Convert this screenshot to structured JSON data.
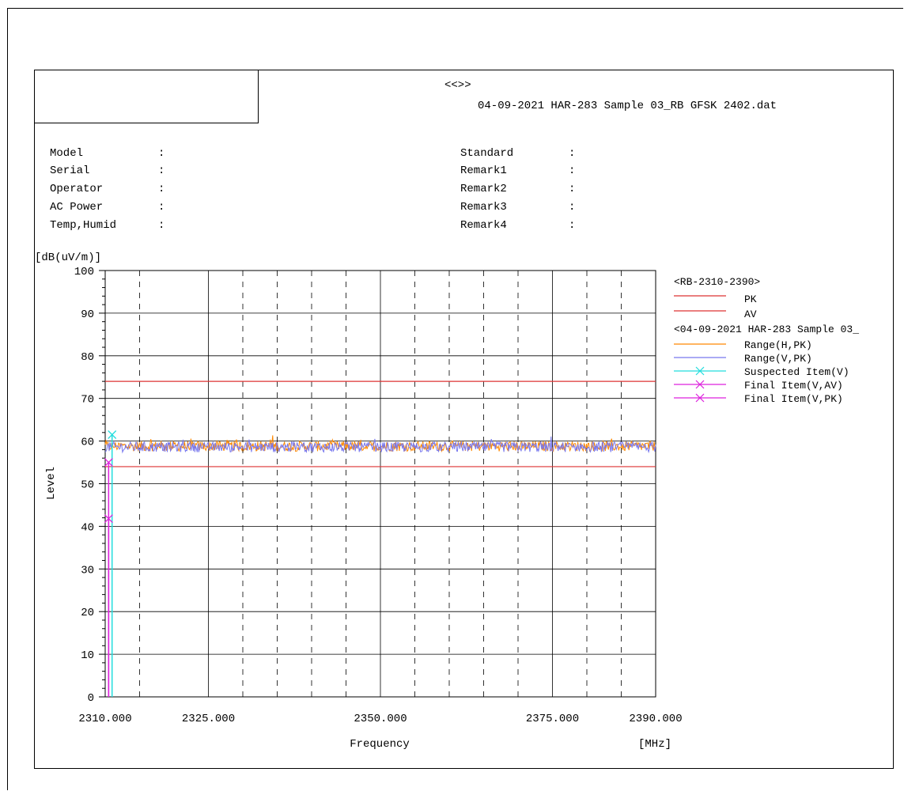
{
  "header": {
    "marker": "<<>>",
    "filename": "04-09-2021 HAR-283 Sample 03_RB GFSK 2402.dat"
  },
  "info_left": [
    {
      "label": "Model",
      "sep": ":",
      "value": ""
    },
    {
      "label": "Serial",
      "sep": ":",
      "value": ""
    },
    {
      "label": "Operator",
      "sep": ":",
      "value": ""
    },
    {
      "label": "AC Power",
      "sep": ":",
      "value": ""
    },
    {
      "label": "Temp,Humid",
      "sep": ":",
      "value": ""
    }
  ],
  "info_right": [
    {
      "label": "Standard",
      "sep": ":",
      "value": ""
    },
    {
      "label": "Remark1",
      "sep": ":",
      "value": ""
    },
    {
      "label": "Remark2",
      "sep": ":",
      "value": ""
    },
    {
      "label": "Remark3",
      "sep": ":",
      "value": ""
    },
    {
      "label": "Remark4",
      "sep": ":",
      "value": ""
    }
  ],
  "chart_data": {
    "type": "line",
    "title": "",
    "xlabel": "Frequency",
    "xunit": "[MHz]",
    "ylabel": "Level",
    "yunit": "[dB(uV/m)]",
    "xlim": [
      2310,
      2390
    ],
    "ylim": [
      0,
      100
    ],
    "xticks": [
      "2310.000",
      "2325.000",
      "2350.000",
      "2375.000",
      "2390.000"
    ],
    "xtick_values": [
      2310,
      2325,
      2350,
      2375,
      2390
    ],
    "yticks": [
      0,
      10,
      20,
      30,
      40,
      50,
      60,
      70,
      80,
      90,
      100
    ],
    "minor_x_values": [
      2315,
      2330,
      2335,
      2340,
      2345,
      2355,
      2360,
      2365,
      2370,
      2380,
      2385
    ],
    "grid": true,
    "colors": {
      "limit": "#dd3333",
      "range_h": "#ff8800",
      "range_v": "#7777ee",
      "suspected": "#22dddd",
      "final": "#dd22dd"
    },
    "legend": {
      "group1_title": "<RB-2310-2390>",
      "group1_items": [
        "PK",
        "AV"
      ],
      "group2_title": "<04-09-2021 HAR-283 Sample 03_",
      "group2_items": [
        "Range(H,PK)",
        "Range(V,PK)",
        "Suspected Item(V)",
        "Final Item(V,AV)",
        "Final Item(V,PK)"
      ]
    },
    "limits": [
      {
        "name": "PK",
        "value": 74
      },
      {
        "name": "AV",
        "value": 54
      }
    ],
    "series": [
      {
        "name": "Range(H,PK)",
        "baseline": 58.8,
        "spread": 1.2
      },
      {
        "name": "Range(V,PK)",
        "baseline": 58.6,
        "spread": 1.2
      }
    ],
    "markers": [
      {
        "name": "Suspected Item(V)",
        "x": 2311.0,
        "y": 61.5
      },
      {
        "name": "Final Item(V,AV)",
        "x": 2310.5,
        "y": 41.8
      },
      {
        "name": "Final Item(V,PK)",
        "x": 2310.5,
        "y": 55.0
      }
    ]
  }
}
